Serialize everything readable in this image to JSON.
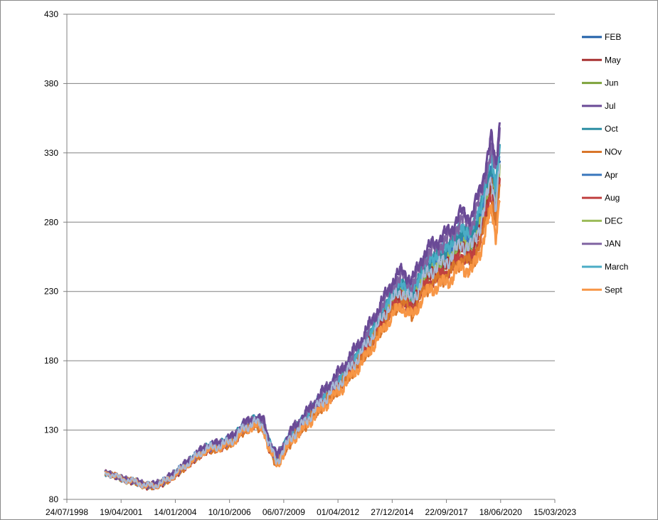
{
  "chart_data": {
    "type": "line",
    "title": "",
    "xlabel": "",
    "ylabel": "",
    "ylim": [
      80,
      430
    ],
    "yticks": [
      80,
      130,
      180,
      230,
      280,
      330,
      380,
      430
    ],
    "xlim": [
      "1998-07-24",
      "2023-03-15"
    ],
    "xticks": [
      {
        "date": "1998-07-24",
        "label": "24/07/1998"
      },
      {
        "date": "2001-04-19",
        "label": "19/04/2001"
      },
      {
        "date": "2004-01-14",
        "label": "14/01/2004"
      },
      {
        "date": "2006-10-10",
        "label": "10/10/2006"
      },
      {
        "date": "2009-07-06",
        "label": "06/07/2009"
      },
      {
        "date": "2012-04-01",
        "label": "01/04/2012"
      },
      {
        "date": "2014-12-27",
        "label": "27/12/2014"
      },
      {
        "date": "2017-09-22",
        "label": "22/09/2017"
      },
      {
        "date": "2020-06-18",
        "label": "18/06/2020"
      },
      {
        "date": "2023-03-15",
        "label": "15/03/2023"
      }
    ],
    "grid": "horizontal",
    "legend_position": "right",
    "base": {
      "x": [
        "2000-07-01",
        "2001-01-01",
        "2001-07-01",
        "2002-01-01",
        "2002-07-01",
        "2003-01-01",
        "2003-07-01",
        "2004-01-01",
        "2004-07-01",
        "2005-01-01",
        "2005-07-01",
        "2006-01-01",
        "2006-07-01",
        "2007-01-01",
        "2007-07-01",
        "2008-01-01",
        "2008-07-01",
        "2008-10-01",
        "2009-03-01",
        "2009-07-01",
        "2010-01-01",
        "2010-07-01",
        "2011-01-01",
        "2011-07-01",
        "2012-01-01",
        "2012-07-01",
        "2013-01-01",
        "2013-07-01",
        "2014-01-01",
        "2014-07-01",
        "2015-01-01",
        "2015-07-01",
        "2016-01-01",
        "2016-07-01",
        "2017-01-01",
        "2017-07-01",
        "2018-01-01",
        "2018-07-01",
        "2019-01-01",
        "2019-07-01",
        "2020-01-01",
        "2020-03-20",
        "2020-06-01"
      ],
      "y": [
        99,
        97,
        94,
        93,
        90,
        90,
        93,
        98,
        104,
        110,
        116,
        118,
        120,
        124,
        132,
        136,
        134,
        120,
        108,
        116,
        128,
        135,
        144,
        152,
        160,
        168,
        178,
        188,
        200,
        212,
        225,
        232,
        224,
        240,
        248,
        252,
        258,
        268,
        264,
        285,
        315,
        296,
        326
      ]
    },
    "series": [
      {
        "name": "FEB",
        "color": "#1f5fa8",
        "values_offset": 0.0
      },
      {
        "name": "May",
        "color": "#a83232",
        "values_offset": -0.03
      },
      {
        "name": "Jun",
        "color": "#7ea33b",
        "values_offset": -0.01
      },
      {
        "name": "Jul",
        "color": "#6a4a96",
        "values_offset": 0.07
      },
      {
        "name": "Oct",
        "color": "#2c8ea3",
        "values_offset": 0.02
      },
      {
        "name": "NOv",
        "color": "#d9762a",
        "values_offset": -0.05
      },
      {
        "name": "Apr",
        "color": "#3b78bd",
        "values_offset": 0.01
      },
      {
        "name": "Aug",
        "color": "#c04040",
        "values_offset": -0.04
      },
      {
        "name": "DEC",
        "color": "#9bbb59",
        "values_offset": -0.02
      },
      {
        "name": "JAN",
        "color": "#8064a2",
        "values_offset": 0.05
      },
      {
        "name": "March",
        "color": "#4bacc6",
        "values_offset": 0.03
      },
      {
        "name": "Sept",
        "color": "#f79646",
        "values_offset": -0.07
      }
    ],
    "overlay_color": "#a7b9d6"
  }
}
